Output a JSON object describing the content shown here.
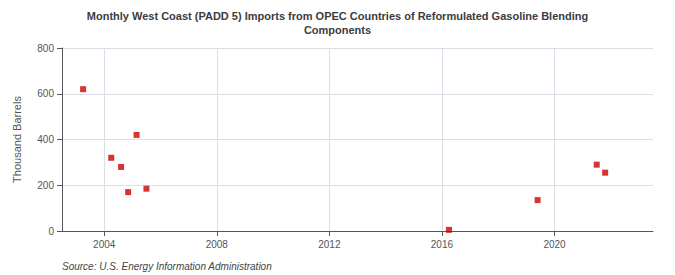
{
  "chart_data": {
    "type": "scatter",
    "title": "Monthly West Coast (PADD 5) Imports from OPEC Countries of Reformulated Gasoline Blending\nComponents",
    "ylabel": "Thousand Barrels",
    "annotation": "Source: U.S. Energy Information Administration",
    "x": [
      2003.25,
      2004.25,
      2004.6,
      2004.85,
      2005.15,
      2005.5,
      2016.25,
      2019.4,
      2021.5,
      2021.8
    ],
    "values": [
      620,
      320,
      280,
      170,
      420,
      185,
      5,
      135,
      290,
      255
    ],
    "color": "#cc0000",
    "marker": "square",
    "xlim": [
      2002.5,
      2023.5
    ],
    "xticks": [
      2004,
      2008,
      2012,
      2016,
      2020
    ],
    "ylim": [
      0,
      800
    ],
    "yticks": [
      0,
      200,
      400,
      600,
      800
    ],
    "grid": true
  }
}
